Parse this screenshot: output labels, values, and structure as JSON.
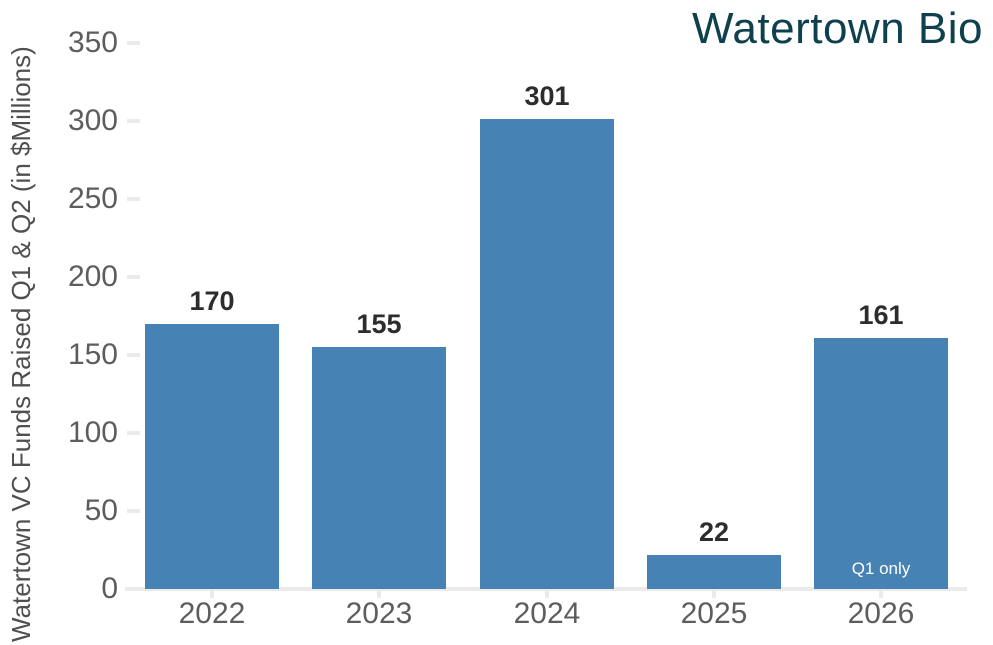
{
  "chart_data": {
    "type": "bar",
    "title": "Watertown Bio",
    "ylabel": "Watertown VC Funds Raised Q1 & Q2 (in $Millions)",
    "xlabel": "",
    "categories": [
      "2022",
      "2023",
      "2024",
      "2025",
      "2026"
    ],
    "values": [
      170,
      155,
      301,
      22,
      161
    ],
    "bar_annotations": [
      "",
      "",
      "",
      "",
      "Q1 only"
    ],
    "yticks": [
      0,
      50,
      100,
      150,
      200,
      250,
      300,
      350
    ],
    "ylim": [
      0,
      350
    ],
    "grid": false,
    "legend": false,
    "colors": {
      "bar": "#4782b4",
      "title": "#0e404e",
      "value_label": "#2d2d2d",
      "tick_label": "#5d5d5d",
      "ylabel_text": "#4f4f4f",
      "axis_line": "#ebebeb",
      "annotation_text": "#ffffff",
      "background": "#ffffff"
    }
  }
}
